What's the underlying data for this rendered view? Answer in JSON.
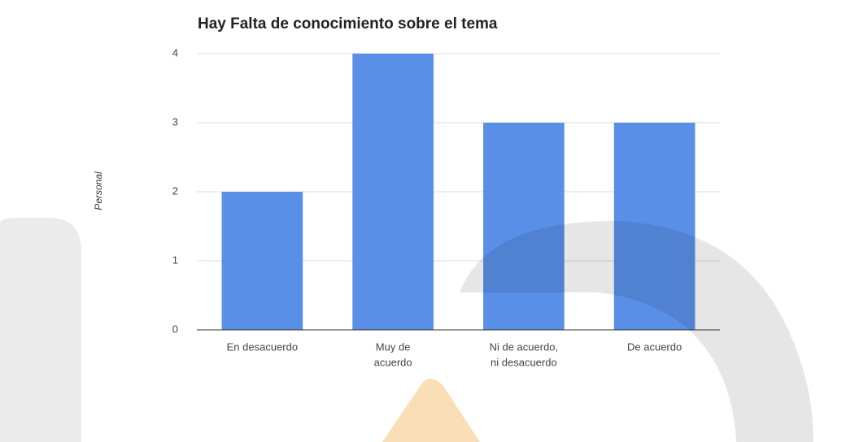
{
  "chart_data": {
    "type": "bar",
    "title": "Hay Falta de conocimiento sobre el tema",
    "y_label": "Personal",
    "categories": [
      [
        "En desacuerdo"
      ],
      [
        "Muy de",
        "acuerdo"
      ],
      [
        "Ni de acuerdo,",
        "ni desacuerdo"
      ],
      [
        "De acuerdo"
      ]
    ],
    "values": [
      2,
      4,
      3,
      3
    ],
    "color": "#5a8fe8",
    "ylim": [
      0,
      4
    ],
    "yticks": [
      0,
      1,
      2,
      3,
      4
    ],
    "grid": true
  }
}
